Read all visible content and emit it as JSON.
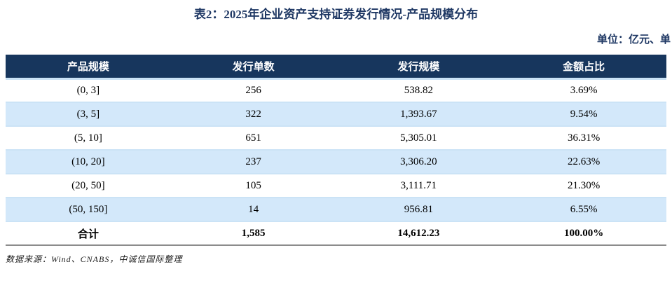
{
  "title": "表2：2025年企业资产支持证券发行情况-产品规模分布",
  "unit_note": "单位：亿元、单",
  "table": {
    "columns": [
      "产品规模",
      "发行单数",
      "发行规模",
      "金额占比"
    ],
    "rows": [
      {
        "cells": [
          "(0, 3]",
          "256",
          "538.82",
          "3.69%"
        ],
        "total": false
      },
      {
        "cells": [
          "(3, 5]",
          "322",
          "1,393.67",
          "9.54%"
        ],
        "total": false
      },
      {
        "cells": [
          "(5, 10]",
          "651",
          "5,305.01",
          "36.31%"
        ],
        "total": false
      },
      {
        "cells": [
          "(10, 20]",
          "237",
          "3,306.20",
          "22.63%"
        ],
        "total": false
      },
      {
        "cells": [
          "(20, 50]",
          "105",
          "3,111.71",
          "21.30%"
        ],
        "total": false
      },
      {
        "cells": [
          "(50, 150]",
          "14",
          "956.81",
          "6.55%"
        ],
        "total": false
      },
      {
        "cells": [
          "合计",
          "1,585",
          "14,612.23",
          "100.00%"
        ],
        "total": true
      }
    ]
  },
  "footer": {
    "source": "数据来源：Wind、CNABS，中诚信国际整理"
  },
  "colors": {
    "header_bg": "#17365D",
    "title_text": "#1F3864",
    "stripe_bg": "#D3E8FA",
    "row_divider": "#CBE3F6",
    "table_bottom_border": "#8C8C8C"
  }
}
